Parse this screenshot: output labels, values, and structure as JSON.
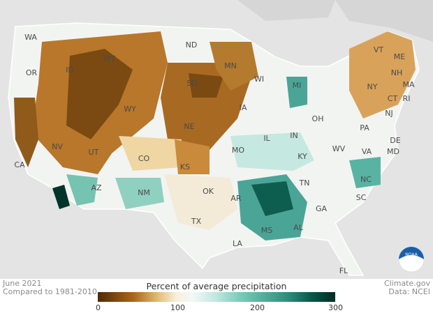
{
  "map": {
    "period": "June 2021",
    "baseline": "Compared to 1981-2010",
    "legend": {
      "title": "Percent of average precipitation",
      "ticks": [
        "0",
        "100",
        "200",
        "300"
      ],
      "range": [
        0,
        300
      ],
      "colors": [
        "#4f2a05",
        "#a8661c",
        "#e6c27d",
        "#f7efdc",
        "#f3f8f7",
        "#bfe6df",
        "#7bcab8",
        "#2f8d7d",
        "#08574a",
        "#012c24"
      ]
    },
    "credit": "Climate.gov",
    "source": "Data: NCEI",
    "logo_text": "NOAA",
    "states": [
      "WA",
      "OR",
      "ID",
      "MT",
      "ND",
      "MN",
      "WI",
      "MI",
      "WY",
      "SD",
      "NE",
      "IA",
      "IL",
      "IN",
      "OH",
      "PA",
      "NY",
      "VT",
      "NH",
      "ME",
      "MA",
      "CT",
      "RI",
      "NJ",
      "DE",
      "MD",
      "WV",
      "VA",
      "KY",
      "TN",
      "NC",
      "SC",
      "GA",
      "FL",
      "AL",
      "MS",
      "LA",
      "AR",
      "MO",
      "KS",
      "OK",
      "TX",
      "NM",
      "AZ",
      "CO",
      "UT",
      "NV",
      "CA"
    ]
  }
}
